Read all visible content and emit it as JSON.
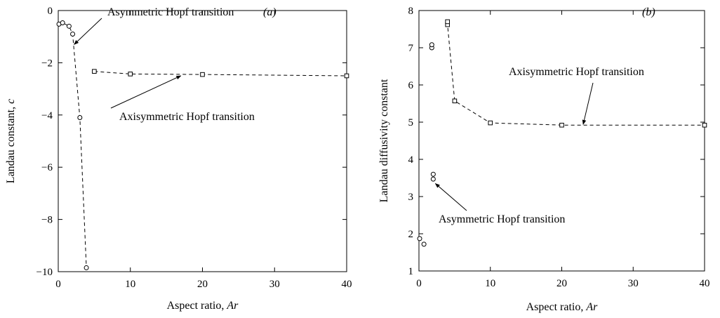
{
  "chart_data": [
    {
      "type": "scatter",
      "panel_label": "(a)",
      "xlabel": "Aspect ratio,",
      "xlabel_var": "Ar",
      "ylabel": "Landau constant,",
      "ylabel_var": "c",
      "xlim": [
        0,
        40
      ],
      "ylim": [
        -10,
        0
      ],
      "xticks": [
        0,
        10,
        20,
        30,
        40
      ],
      "yticks": [
        -10,
        -8,
        -6,
        -4,
        -2,
        0
      ],
      "grid": false,
      "series": [
        {
          "marker": "circle",
          "line": "dashed",
          "points": [
            [
              0.1,
              -0.52
            ],
            [
              0.6,
              -0.47
            ],
            [
              1.5,
              -0.6
            ],
            [
              2.0,
              -0.9
            ],
            [
              3.0,
              -4.1
            ],
            [
              3.9,
              -9.85
            ]
          ]
        },
        {
          "marker": "square",
          "line": "dashed",
          "points": [
            [
              5,
              -2.33
            ],
            [
              10,
              -2.43
            ],
            [
              20,
              -2.45
            ],
            [
              40,
              -2.5
            ]
          ]
        }
      ],
      "annotations": [
        {
          "text": "Asymmetric Hopf transition",
          "arrow_to": [
            2.2,
            -1.3
          ]
        },
        {
          "text": "Axisymmetric Hopf transition",
          "arrow_to": [
            17,
            -2.5
          ]
        }
      ]
    },
    {
      "type": "scatter",
      "panel_label": "(b)",
      "xlabel": "Aspect ratio,",
      "xlabel_var": "Ar",
      "ylabel": "Landau diffusivity constant",
      "xlim": [
        0,
        40
      ],
      "ylim": [
        1,
        8
      ],
      "xticks": [
        0,
        10,
        20,
        30,
        40
      ],
      "yticks": [
        1,
        2,
        3,
        4,
        5,
        6,
        7,
        8
      ],
      "grid": false,
      "series": [
        {
          "marker": "circle",
          "line": "none",
          "points": [
            [
              0.1,
              1.87
            ],
            [
              0.7,
              1.72
            ],
            [
              1.8,
              7.0
            ],
            [
              1.8,
              7.08
            ],
            [
              2.0,
              3.47
            ],
            [
              2.0,
              3.6
            ]
          ]
        },
        {
          "marker": "square",
          "line": "dashed",
          "points": [
            [
              4,
              7.62
            ],
            [
              4,
              7.7
            ],
            [
              5,
              5.57
            ],
            [
              10,
              4.98
            ],
            [
              20,
              4.92
            ],
            [
              40,
              4.92
            ]
          ]
        }
      ],
      "annotations": [
        {
          "text": "Axisymmetric Hopf transition",
          "arrow_to": [
            23,
            4.94
          ]
        },
        {
          "text": "Asymmetric Hopf transition",
          "arrow_to": [
            2.3,
            3.35
          ]
        }
      ]
    }
  ]
}
